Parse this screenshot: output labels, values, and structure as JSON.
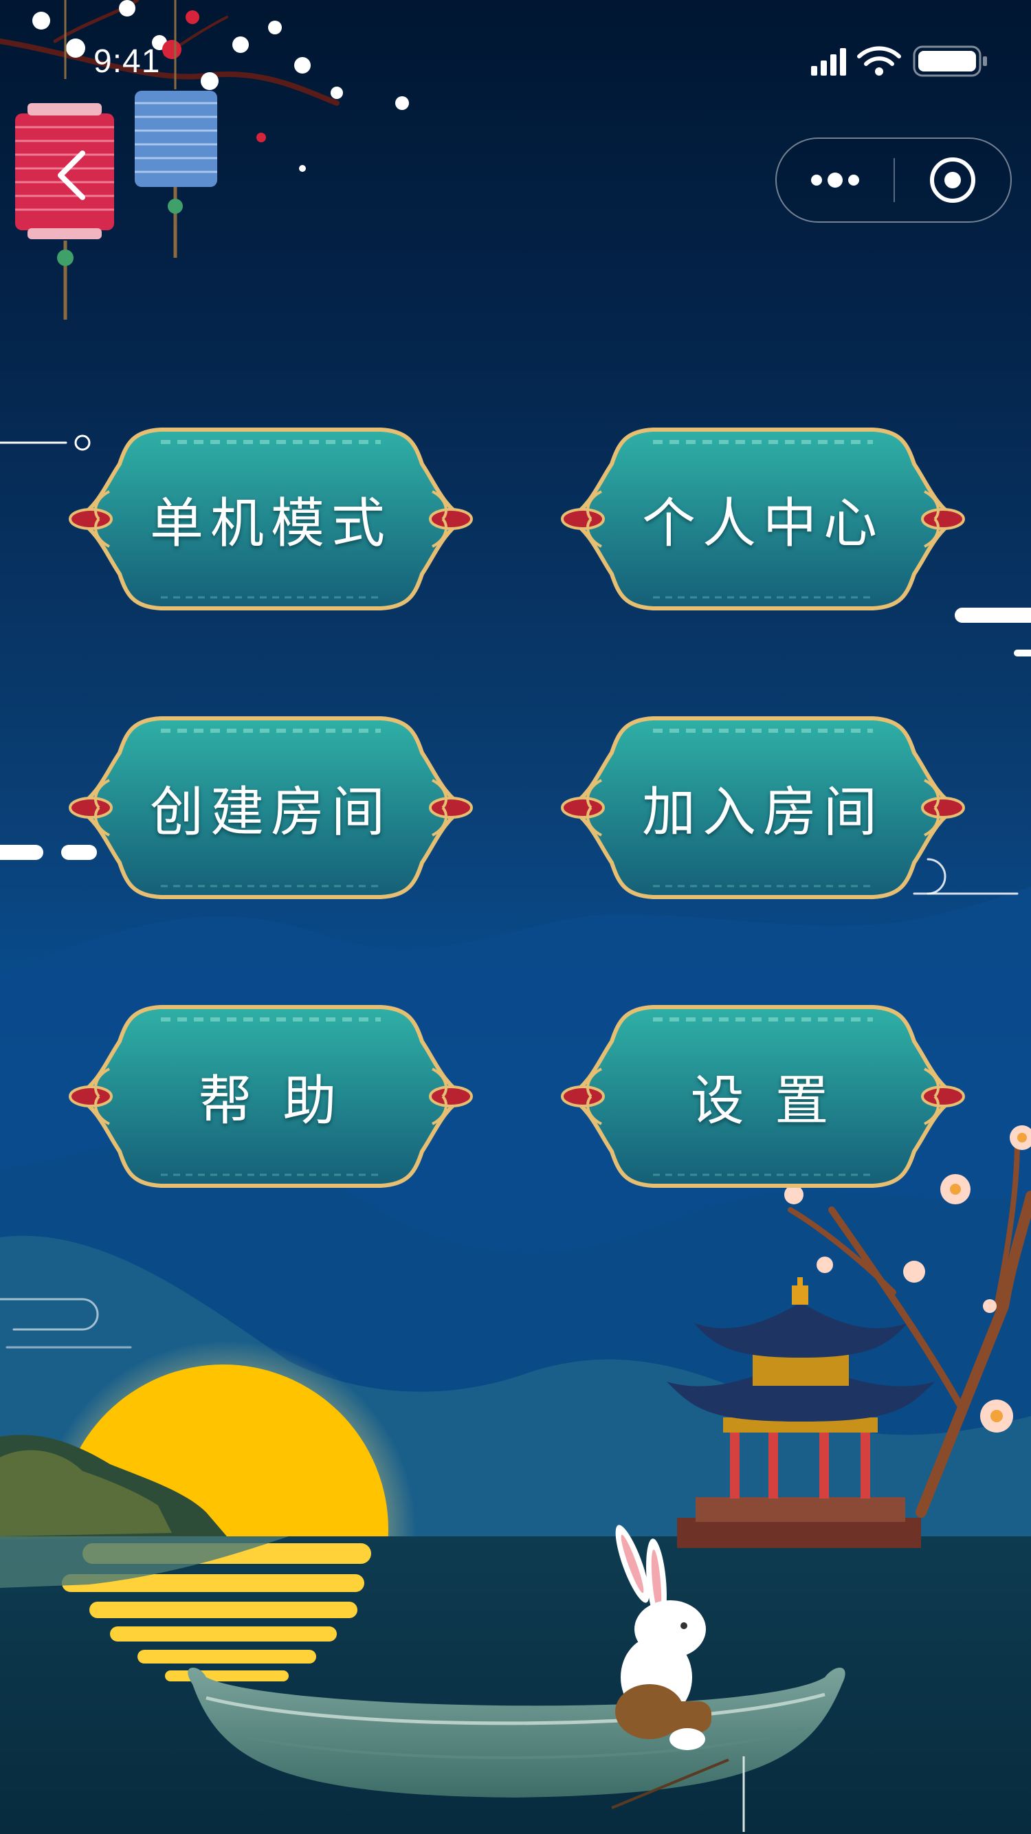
{
  "status_bar": {
    "time": "9:41",
    "icons": [
      "signal-icon",
      "wifi-icon",
      "battery-icon"
    ]
  },
  "capsule": {
    "more_icon": "more-dots-icon",
    "close_icon": "target-circle-icon"
  },
  "nav": {
    "back_icon": "chevron-left-icon"
  },
  "menu": {
    "single_mode": "单机模式",
    "personal_center": "个人中心",
    "create_room": "创建房间",
    "join_room": "加入房间",
    "help": "帮 助",
    "settings": "设 置"
  },
  "colors": {
    "button_teal": "#2aa39a",
    "button_teal_dark": "#156f7d",
    "button_border": "#e6bf73",
    "moon": "#ffc300",
    "background_top": "#001631",
    "background_mid": "#0a3f75"
  }
}
